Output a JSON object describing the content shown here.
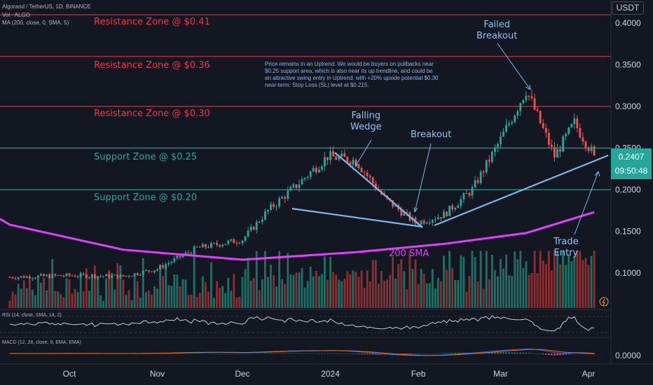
{
  "header": {
    "title": "Algorand / TetherUS, 1D, BINANCE",
    "volume_label": "Vol · ALGO",
    "ma_label": "MA (200, close, 0, SMA, 5)"
  },
  "currency_button": "USDT",
  "zones": [
    {
      "label": "Resistance Zone @ $0.41",
      "price": 0.41,
      "kind": "resistance"
    },
    {
      "label": "Resistance Zone @ $0.36",
      "price": 0.36,
      "kind": "resistance"
    },
    {
      "label": "Resistance Zone @ $0.30",
      "price": 0.3,
      "kind": "resistance"
    },
    {
      "label": "Support Zone @ $0.25",
      "price": 0.25,
      "kind": "support"
    },
    {
      "label": "Support Zone @ $0.20",
      "price": 0.2,
      "kind": "support"
    }
  ],
  "note": "Price remains in an Uptrend. We would be buyers on pullbacks near $0.25 support area, which is also near its up trendline, and could be an attractive swing entry in Uptrend, with +20% upside potential $0.30 near-term. Stop Loss (SL) level at $0.215.",
  "annotations": {
    "falling_wedge": [
      "Falling",
      "Wedge"
    ],
    "breakout": "Breakout",
    "failed_breakout": [
      "Failed",
      "Breakout"
    ],
    "trade_entry": [
      "Trade",
      "Entry"
    ],
    "sma": "200 SMA"
  },
  "indicators": {
    "rsi_label": "RSI (14, close, SMA, 14, 2)",
    "macd_label": "MACD (12, 26, close, 9, EMA, EMA)",
    "macd_axis_label": "0.0000"
  },
  "price_box": {
    "price": "0.2407",
    "countdown": "09:50:48"
  },
  "colors": {
    "background": "#131722",
    "up": "#26a69a",
    "down": "#ef5350",
    "resistance": "#b22833",
    "support": "#1f8a80",
    "sma": "#e040fb",
    "trendline": "#7ab6e8"
  },
  "chart_data": {
    "type": "candlestick",
    "y_axis_ticks": [
      "0.4000",
      "0.3500",
      "0.3000",
      "0.2500",
      "0.2000",
      "0.1500",
      "0.1000"
    ],
    "x_axis_ticks": [
      "Oct",
      "Nov",
      "Dec",
      "2024",
      "Feb",
      "Mar",
      "Apr"
    ],
    "last_price": 0.2407,
    "approx_price_path": [
      {
        "date": "2023-09-10",
        "price": 0.095
      },
      {
        "date": "2023-10-01",
        "price": 0.097
      },
      {
        "date": "2023-10-20",
        "price": 0.096
      },
      {
        "date": "2023-11-01",
        "price": 0.105
      },
      {
        "date": "2023-11-15",
        "price": 0.13
      },
      {
        "date": "2023-12-01",
        "price": 0.14
      },
      {
        "date": "2023-12-10",
        "price": 0.175
      },
      {
        "date": "2023-12-20",
        "price": 0.205
      },
      {
        "date": "2023-12-31",
        "price": 0.24
      },
      {
        "date": "2024-01-10",
        "price": 0.235
      },
      {
        "date": "2024-01-20",
        "price": 0.19
      },
      {
        "date": "2024-01-31",
        "price": 0.16
      },
      {
        "date": "2024-02-10",
        "price": 0.17
      },
      {
        "date": "2024-02-20",
        "price": 0.2
      },
      {
        "date": "2024-03-01",
        "price": 0.26
      },
      {
        "date": "2024-03-10",
        "price": 0.32
      },
      {
        "date": "2024-03-20",
        "price": 0.24
      },
      {
        "date": "2024-03-27",
        "price": 0.28
      },
      {
        "date": "2024-04-03",
        "price": 0.2407
      }
    ],
    "sma200_approx": [
      {
        "date": "2023-09-10",
        "value": 0.158
      },
      {
        "date": "2023-10-20",
        "value": 0.128
      },
      {
        "date": "2023-12-01",
        "value": 0.116
      },
      {
        "date": "2024-01-10",
        "value": 0.125
      },
      {
        "date": "2024-02-10",
        "value": 0.135
      },
      {
        "date": "2024-03-10",
        "value": 0.148
      },
      {
        "date": "2024-04-03",
        "value": 0.173
      }
    ]
  }
}
